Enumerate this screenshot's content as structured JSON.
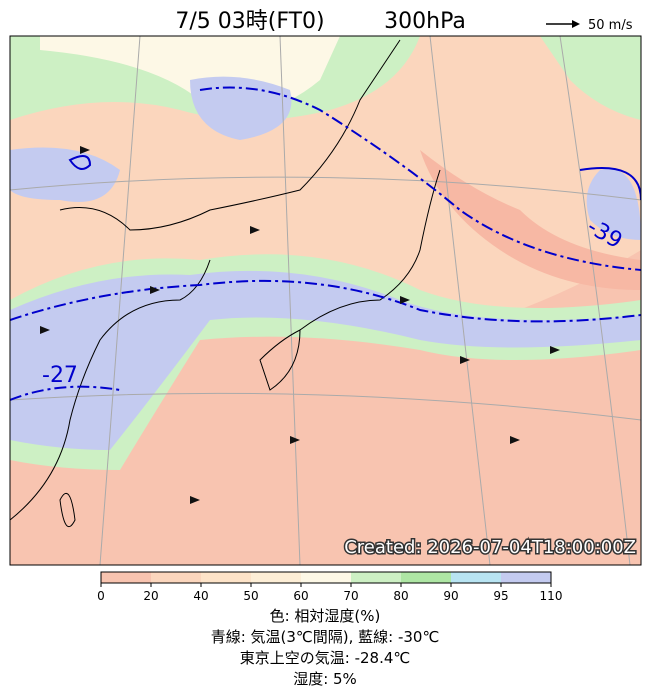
{
  "header": {
    "title": "7/5 03時(FT0)",
    "level": "300hPa",
    "vector_scale": "50 m/s"
  },
  "map": {
    "created": "Created: 2026-07-04T18:00:00Z",
    "contour_labels": [
      "-27",
      "-39"
    ]
  },
  "colorbar": {
    "ticks": [
      0,
      20,
      40,
      50,
      60,
      70,
      80,
      90,
      95,
      110
    ],
    "colors": [
      "#f8c4b0",
      "#fbd6bd",
      "#fde3c8",
      "#fdeed6",
      "#fdf8e6",
      "#cdf0c4",
      "#aee6a4",
      "#b8e4f2",
      "#c4cbf0"
    ]
  },
  "captions": [
    "色: 相対湿度(%)",
    "青線: 気温(3℃間隔), 藍線: -30℃",
    "東京上空の気温: -28.4℃",
    "湿度: 5%"
  ]
}
